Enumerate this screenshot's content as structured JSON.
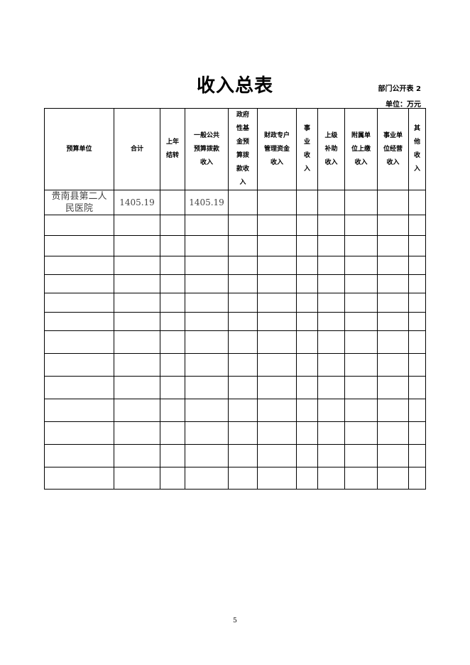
{
  "title": "收入总表",
  "table_tag": "部门公开表 2",
  "unit": "单位：万元",
  "columns": [
    "预算单位",
    "合计",
    "上年\n结转",
    "一般公共\n预算拨款\n收入",
    "政府\n性基\n金预\n算拨\n款收\n入",
    "财政专户\n管理资金\n收入",
    "事\n业\n收\n入",
    "上级\n补助\n收入",
    "附属单\n位上缴\n收入",
    "事业单\n位经营\n收入",
    "其\n他\n收\n入"
  ],
  "rows": [
    [
      "贵南县第二人民医院",
      "1405.19",
      "",
      "1405.19",
      "",
      "",
      "",
      "",
      "",
      "",
      ""
    ]
  ],
  "page_number": "5"
}
